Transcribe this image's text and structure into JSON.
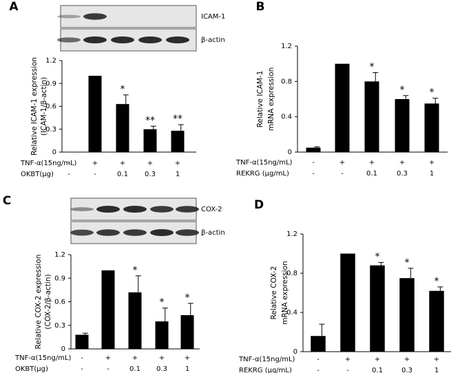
{
  "chart_data": [
    {
      "type": "bar",
      "panel": "A",
      "color": "#000000",
      "ylabel": [
        "Relative ICAM-1 expression",
        "(ICAM-1/β-actin)"
      ],
      "blot_labels": [
        "ICAM-1",
        "β-actin"
      ],
      "values": [
        0,
        1.0,
        0.63,
        0.3,
        0.28
      ],
      "errors": [
        0,
        0,
        0.12,
        0.04,
        0.08
      ],
      "annotations": [
        null,
        null,
        "*",
        "**",
        "**"
      ],
      "row_labels": [
        {
          "name": "TNF-α(15ng/mL)",
          "values": [
            "-",
            "+",
            "+",
            "+",
            "+"
          ]
        },
        {
          "name": "OKBT(μg)",
          "values": [
            "-",
            "-",
            "0.1",
            "0.3",
            "1"
          ]
        }
      ],
      "ylim": [
        0,
        1.2
      ],
      "yticks": [
        0,
        0.3,
        0.6,
        0.9,
        1.2
      ]
    },
    {
      "type": "bar",
      "panel": "B",
      "color": "#000000",
      "ylabel": [
        "Relative ICAM-1",
        "mRNA expression"
      ],
      "values": [
        0.05,
        1.0,
        0.8,
        0.6,
        0.55
      ],
      "errors": [
        0.01,
        0,
        0.1,
        0.04,
        0.06
      ],
      "annotations": [
        null,
        null,
        "*",
        "*",
        "*"
      ],
      "row_labels": [
        {
          "name": "TNF-α(15ng/mL)",
          "values": [
            "-",
            "+",
            "+",
            "+",
            "+"
          ]
        },
        {
          "name": "REKRG (μg/mL)",
          "values": [
            "-",
            "-",
            "0.1",
            "0.3",
            "1"
          ]
        }
      ],
      "ylim": [
        0,
        1.2
      ],
      "yticks": [
        0,
        0.4,
        0.8,
        1.2
      ]
    },
    {
      "type": "bar",
      "panel": "C",
      "color": "#000000",
      "ylabel": [
        "Relative COX-2 expression",
        "(COX-2/β-actin)"
      ],
      "blot_labels": [
        "COX-2",
        "β-actin"
      ],
      "values": [
        0.18,
        1.0,
        0.72,
        0.35,
        0.43
      ],
      "errors": [
        0.02,
        0,
        0.21,
        0.17,
        0.15
      ],
      "annotations": [
        null,
        null,
        "*",
        "*",
        "*"
      ],
      "row_labels": [
        {
          "name": "TNF-α(15ng/mL)",
          "values": [
            "-",
            "+",
            "+",
            "+",
            "+"
          ]
        },
        {
          "name": "OKBT(μg)",
          "values": [
            "-",
            "-",
            "0.1",
            "0.3",
            "1"
          ]
        }
      ],
      "ylim": [
        0,
        1.2
      ],
      "yticks": [
        0,
        0.3,
        0.6,
        0.9,
        1.2
      ]
    },
    {
      "type": "bar",
      "panel": "D",
      "color": "#000000",
      "ylabel": [
        "Relative COX-2",
        "mRNA expression"
      ],
      "values": [
        0.16,
        1.0,
        0.88,
        0.75,
        0.62
      ],
      "errors": [
        0.12,
        0,
        0.03,
        0.1,
        0.04
      ],
      "annotations": [
        null,
        null,
        "*",
        "*",
        "*"
      ],
      "row_labels": [
        {
          "name": "TNF-α(15ng/mL)",
          "values": [
            "-",
            "+",
            "+",
            "+",
            "+"
          ]
        },
        {
          "name": "REKRG (μg/mL)",
          "values": [
            "-",
            "-",
            "0.1",
            "0.3",
            "1"
          ]
        }
      ],
      "ylim": [
        0,
        1.2
      ],
      "yticks": [
        0,
        0.4,
        0.8,
        1.2
      ]
    }
  ]
}
